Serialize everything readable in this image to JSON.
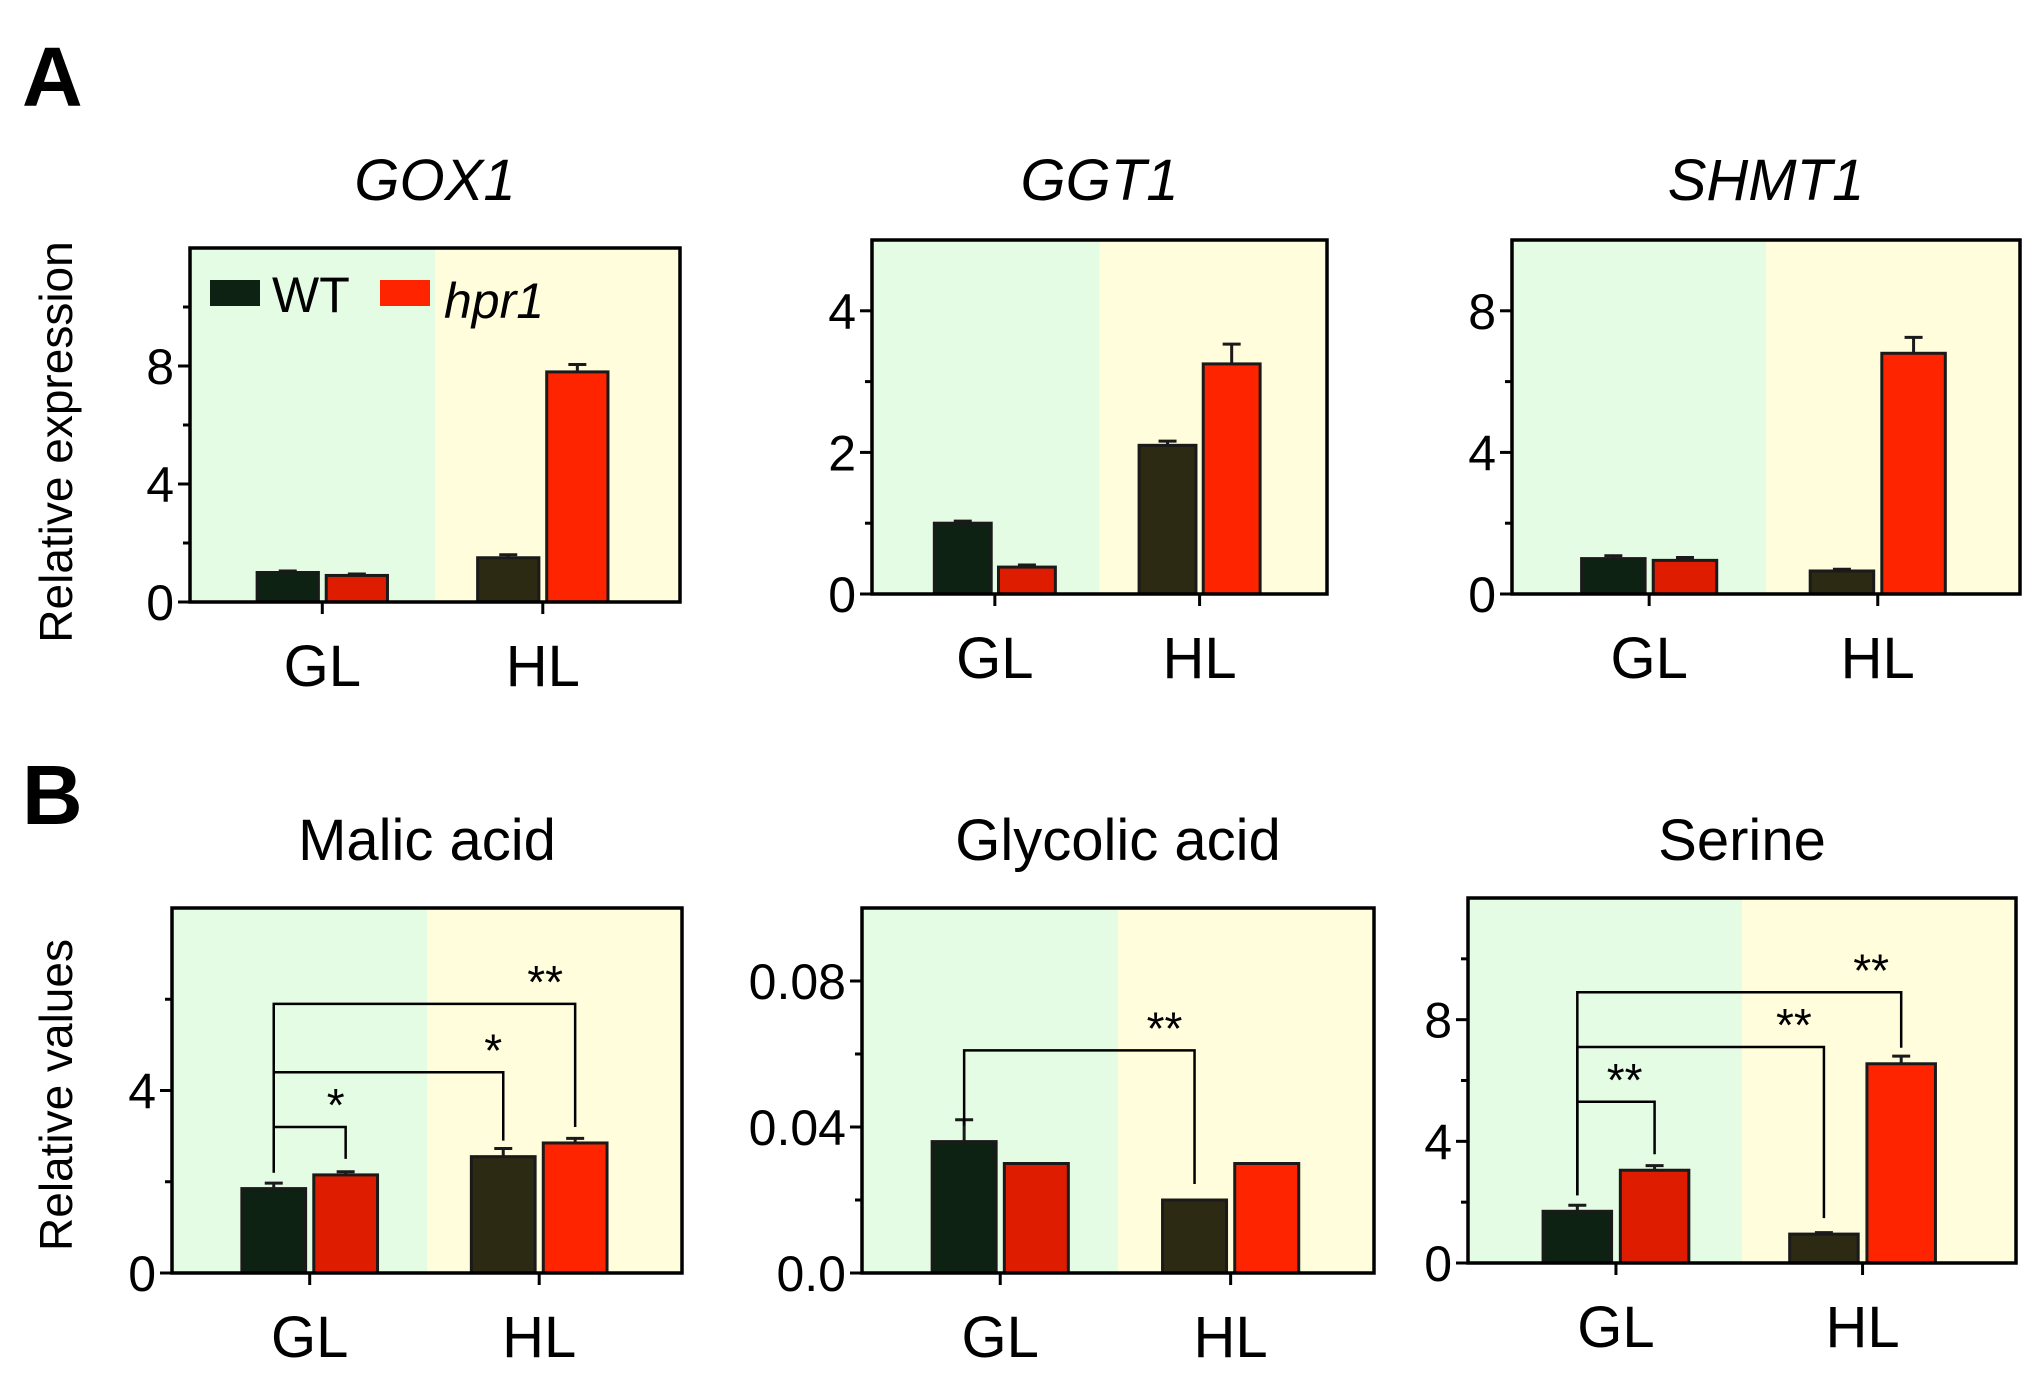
{
  "figure": {
    "panel_labels": [
      "A",
      "B"
    ],
    "legend": {
      "wt_label": "WT",
      "mutant_label": "hpr1"
    },
    "ylabels": {
      "A": "Relative expression",
      "B": "Relative values"
    },
    "colors": {
      "wt_gl": "#0d2213",
      "wt_hl": "#2d2a14",
      "hpr1_gl": "#de1c00",
      "hpr1_hl": "#ff2400",
      "bg_gl": "#e4fbe4",
      "bg_hl": "#fffddc"
    }
  },
  "chart_data": [
    {
      "type": "bar",
      "title": "GOX1",
      "italic": true,
      "ylabel": "Relative expression",
      "categories": [
        "GL",
        "HL"
      ],
      "ylim": [
        0,
        12
      ],
      "yticks": [
        0,
        4,
        8
      ],
      "minor_ticks": [
        2,
        6,
        10
      ],
      "series": [
        {
          "name": "WT",
          "values": [
            1.0,
            1.5
          ],
          "errors": [
            0.05,
            0.1
          ]
        },
        {
          "name": "hpr1",
          "values": [
            0.9,
            7.8
          ],
          "errors": [
            0.05,
            0.25
          ]
        }
      ],
      "significance": []
    },
    {
      "type": "bar",
      "title": "GGT1",
      "italic": true,
      "ylabel": "",
      "categories": [
        "GL",
        "HL"
      ],
      "ylim": [
        0,
        5
      ],
      "yticks": [
        0,
        2,
        4
      ],
      "minor_ticks": [
        1,
        3
      ],
      "series": [
        {
          "name": "WT",
          "values": [
            1.0,
            2.1
          ],
          "errors": [
            0.03,
            0.06
          ]
        },
        {
          "name": "hpr1",
          "values": [
            0.38,
            3.25
          ],
          "errors": [
            0.03,
            0.28
          ]
        }
      ],
      "significance": []
    },
    {
      "type": "bar",
      "title": "SHMT1",
      "italic": true,
      "ylabel": "",
      "categories": [
        "GL",
        "HL"
      ],
      "ylim": [
        0,
        10
      ],
      "yticks": [
        0,
        4,
        8
      ],
      "minor_ticks": [
        2,
        6
      ],
      "series": [
        {
          "name": "WT",
          "values": [
            1.0,
            0.65
          ],
          "errors": [
            0.08,
            0.05
          ]
        },
        {
          "name": "hpr1",
          "values": [
            0.95,
            6.8
          ],
          "errors": [
            0.08,
            0.45
          ]
        }
      ],
      "significance": []
    },
    {
      "type": "bar",
      "title": "Malic acid",
      "italic": false,
      "ylabel": "Relative values",
      "categories": [
        "GL",
        "HL"
      ],
      "ylim": [
        0,
        8
      ],
      "yticks": [
        0,
        4
      ],
      "minor_ticks": [
        2,
        6
      ],
      "series": [
        {
          "name": "WT",
          "values": [
            1.85,
            2.55
          ],
          "errors": [
            0.12,
            0.18
          ]
        },
        {
          "name": "hpr1",
          "values": [
            2.15,
            2.85
          ],
          "errors": [
            0.07,
            0.1
          ]
        }
      ],
      "significance": [
        {
          "label": "*",
          "from": "WT-GL",
          "to": "hpr1-GL",
          "y": 3.2
        },
        {
          "label": "*",
          "from": "WT-GL",
          "to": "WT-HL",
          "y": 4.4
        },
        {
          "label": "**",
          "from": "WT-GL",
          "to": "hpr1-HL",
          "y": 5.9
        }
      ]
    },
    {
      "type": "bar",
      "title": "Glycolic acid",
      "italic": false,
      "ylabel": "",
      "categories": [
        "GL",
        "HL"
      ],
      "ylim": [
        0,
        0.1
      ],
      "yticks": [
        "0.0",
        "0.04",
        "0.08"
      ],
      "ytick_values": [
        0,
        0.04,
        0.08
      ],
      "minor_ticks": [
        0.02,
        0.06
      ],
      "series": [
        {
          "name": "WT",
          "values": [
            0.036,
            0.02
          ],
          "errors": [
            0.006,
            0.0
          ]
        },
        {
          "name": "hpr1",
          "values": [
            0.03,
            0.03
          ],
          "errors": [
            0.0,
            0.0
          ]
        }
      ],
      "significance": [
        {
          "label": "**",
          "from": "WT-GL",
          "to": "WT-HL",
          "y": 0.061
        }
      ]
    },
    {
      "type": "bar",
      "title": "Serine",
      "italic": false,
      "ylabel": "",
      "categories": [
        "GL",
        "HL"
      ],
      "ylim": [
        0,
        12
      ],
      "yticks": [
        0,
        4,
        8
      ],
      "minor_ticks": [
        2,
        6,
        10
      ],
      "series": [
        {
          "name": "WT",
          "values": [
            1.7,
            0.95
          ],
          "errors": [
            0.2,
            0.05
          ]
        },
        {
          "name": "hpr1",
          "values": [
            3.05,
            6.55
          ],
          "errors": [
            0.15,
            0.25
          ]
        }
      ],
      "significance": [
        {
          "label": "**",
          "from": "WT-GL",
          "to": "hpr1-GL",
          "y": 5.3
        },
        {
          "label": "**",
          "from": "WT-GL",
          "to": "WT-HL",
          "y": 7.1
        },
        {
          "label": "**",
          "from": "WT-GL",
          "to": "hpr1-HL",
          "y": 8.9
        }
      ]
    }
  ]
}
